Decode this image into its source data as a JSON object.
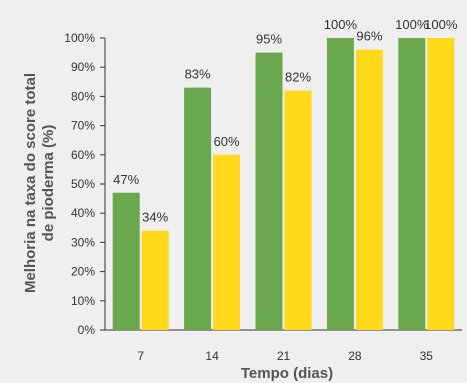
{
  "chart_data": {
    "type": "bar",
    "xlabel": "Tempo (dias)",
    "ylabel_lines": [
      "Melhoria na taxa do score total",
      "de pioderma (%)"
    ],
    "categories": [
      "7",
      "14",
      "21",
      "28",
      "35"
    ],
    "series": [
      {
        "values": [
          47,
          83,
          95,
          100,
          100
        ],
        "labels": [
          "47%",
          "83%",
          "95%",
          "100%",
          "100%"
        ],
        "color": "#6aa84f"
      },
      {
        "values": [
          34,
          60,
          82,
          96,
          100
        ],
        "labels": [
          "34%",
          "60%",
          "82%",
          "96%",
          "100%"
        ],
        "color": "#ffd91a"
      }
    ],
    "yticks": [
      "0%",
      "10%",
      "20%",
      "30%",
      "40%",
      "50%",
      "60%",
      "70%",
      "80%",
      "90%",
      "100%"
    ],
    "ylim": [
      0,
      100
    ],
    "grid": false,
    "legend": "none"
  },
  "colors": {
    "background": "#efefef",
    "axis": "#333333"
  }
}
